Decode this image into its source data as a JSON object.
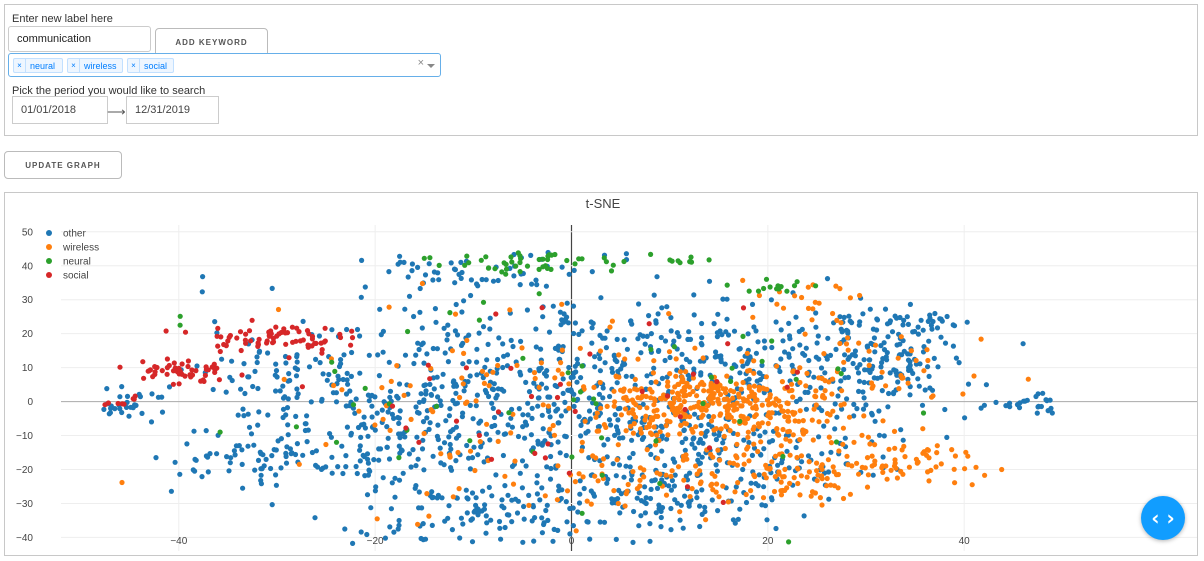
{
  "form": {
    "new_label_prompt": "Enter new label here",
    "keyword_value": "communication",
    "add_keyword_label": "ADD KEYWORD",
    "tags": [
      "neural",
      "wireless",
      "social"
    ],
    "tag_remove_glyph": "×",
    "clear_glyph": "×",
    "period_prompt": "Pick the period you would like to search",
    "start_date": "01/01/2018",
    "end_date": "12/31/2019",
    "date_arrow": "⟶"
  },
  "update_graph_label": "UPDATE GRAPH",
  "fab_glyph": "‹ ›",
  "colors": {
    "accent": "#119dff",
    "other": "#1f77b4",
    "wireless": "#ff7f0e",
    "neural": "#2ca02c",
    "social": "#d62728"
  },
  "chart_data": {
    "type": "scatter",
    "title": "t-SNE",
    "xlim": [
      -52,
      52
    ],
    "ylim": [
      -44,
      52
    ],
    "x_ticks": [
      -40,
      -20,
      0,
      20,
      40
    ],
    "y_ticks": [
      -40,
      -30,
      -20,
      -10,
      0,
      10,
      20,
      30,
      40,
      50
    ],
    "x_tick_labels": [
      "−40",
      "−20",
      "0",
      "20",
      "40"
    ],
    "y_tick_labels": [
      "−40",
      "−30",
      "−20",
      "−10",
      "0",
      "10",
      "20",
      "30",
      "40",
      "50"
    ],
    "grid": true,
    "legend_position": "top-left",
    "series": [
      {
        "name": "other",
        "color": "#1f77b4",
        "clusters": [
          {
            "cx": -12,
            "cy": 0,
            "sx": 10,
            "sy": 18,
            "n": 320
          },
          {
            "cx": 3,
            "cy": 5,
            "sx": 10,
            "sy": 16,
            "n": 260
          },
          {
            "cx": -22,
            "cy": -8,
            "sx": 6,
            "sy": 8,
            "n": 100
          },
          {
            "cx": 15,
            "cy": 15,
            "sx": 8,
            "sy": 8,
            "n": 110
          },
          {
            "cx": 10,
            "cy": -28,
            "sx": 6,
            "sy": 6,
            "n": 110
          },
          {
            "cx": -8,
            "cy": -32,
            "sx": 6,
            "sy": 5,
            "n": 100
          },
          {
            "cx": 28,
            "cy": 8,
            "sx": 6,
            "sy": 9,
            "n": 120
          },
          {
            "cx": 33,
            "cy": 12,
            "sx": 4,
            "sy": 7,
            "n": 70
          },
          {
            "cx": -33,
            "cy": -17,
            "sx": 4,
            "sy": 4,
            "n": 50
          },
          {
            "cx": -45,
            "cy": -1,
            "sx": 2,
            "sy": 2,
            "n": 30
          },
          {
            "cx": 47,
            "cy": -1,
            "sx": 2,
            "sy": 1.5,
            "n": 25
          },
          {
            "cx": 22,
            "cy": -18,
            "sx": 6,
            "sy": 5,
            "n": 70
          },
          {
            "cx": -10,
            "cy": 38,
            "sx": 5,
            "sy": 3,
            "n": 50
          },
          {
            "cx": 5,
            "cy": -10,
            "sx": 10,
            "sy": 8,
            "n": 120
          },
          {
            "cx": 34,
            "cy": 24,
            "sx": 3,
            "sy": 2,
            "n": 30
          },
          {
            "cx": -28,
            "cy": 8,
            "sx": 6,
            "sy": 6,
            "n": 60
          }
        ]
      },
      {
        "name": "wireless",
        "color": "#ff7f0e",
        "clusters": [
          {
            "cx": 13,
            "cy": 0,
            "sx": 5,
            "sy": 5,
            "n": 260
          },
          {
            "cx": 22,
            "cy": -5,
            "sx": 6,
            "sy": 8,
            "n": 130
          },
          {
            "cx": 10,
            "cy": -22,
            "sx": 6,
            "sy": 6,
            "n": 90
          },
          {
            "cx": 34,
            "cy": -18,
            "sx": 5,
            "sy": 3,
            "n": 60
          },
          {
            "cx": 25,
            "cy": -22,
            "sx": 4,
            "sy": 3,
            "n": 50
          },
          {
            "cx": -5,
            "cy": 0,
            "sx": 12,
            "sy": 14,
            "n": 120
          },
          {
            "cx": 23,
            "cy": 30,
            "sx": 3,
            "sy": 3,
            "n": 20
          },
          {
            "cx": 30,
            "cy": 10,
            "sx": 5,
            "sy": 6,
            "n": 40
          }
        ]
      },
      {
        "name": "neural",
        "color": "#2ca02c",
        "clusters": [
          {
            "cx": -5,
            "cy": 41,
            "sx": 5,
            "sy": 1.8,
            "n": 45
          },
          {
            "cx": 22,
            "cy": 34,
            "sx": 2,
            "sy": 1.2,
            "n": 12
          },
          {
            "cx": 12,
            "cy": 41.5,
            "sx": 1.5,
            "sy": 0.6,
            "n": 8
          },
          {
            "cx": 0,
            "cy": 0,
            "sx": 20,
            "sy": 18,
            "n": 55
          }
        ]
      },
      {
        "name": "social",
        "color": "#d62728",
        "clusters": [
          {
            "cx": -31,
            "cy": 19,
            "sx": 3.5,
            "sy": 2,
            "n": 70
          },
          {
            "cx": -40,
            "cy": 9,
            "sx": 2.5,
            "sy": 2,
            "n": 50
          },
          {
            "cx": -46,
            "cy": 0,
            "sx": 1.5,
            "sy": 1,
            "n": 8
          },
          {
            "cx": -5,
            "cy": 5,
            "sx": 14,
            "sy": 15,
            "n": 40
          }
        ]
      }
    ]
  }
}
